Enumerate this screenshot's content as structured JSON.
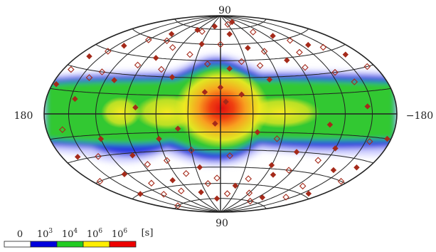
{
  "chart_data": {
    "type": "sky-map (hammer-aitoff projection)",
    "axis_labels": {
      "top": "90",
      "bottom": "90",
      "left": "180",
      "right": "−180"
    },
    "colorbar": {
      "ticks": [
        {
          "base": "0",
          "exp": ""
        },
        {
          "base": "10",
          "exp": "3"
        },
        {
          "base": "10",
          "exp": "4"
        },
        {
          "base": "10",
          "exp": "6"
        },
        {
          "base": "10",
          "exp": "6"
        }
      ],
      "unit": "[s]",
      "colors": [
        "#ffffff",
        "#0000dd",
        "#22cc22",
        "#ffee00",
        "#ee0000"
      ]
    },
    "colors": {
      "grid": "#222222",
      "marker": "#a52a1a",
      "density_scale": [
        "#c8c8ff",
        "#2a3ae0",
        "#30c830",
        "#f4ea20",
        "#f07010",
        "#e01010"
      ]
    },
    "marker_styles": [
      "filled-diamond",
      "open-diamond"
    ],
    "filled_markers": [
      [
        -60,
        82
      ],
      [
        20,
        78
      ],
      [
        -20,
        70
      ],
      [
        60,
        73
      ],
      [
        -100,
        64
      ],
      [
        100,
        66
      ],
      [
        -130,
        52
      ],
      [
        140,
        50
      ],
      [
        -40,
        56
      ],
      [
        30,
        60
      ],
      [
        -160,
        40
      ],
      [
        165,
        38
      ],
      [
        80,
        45
      ],
      [
        -80,
        43
      ],
      [
        -10,
        38
      ],
      [
        50,
        30
      ],
      [
        -50,
        28
      ],
      [
        0,
        22
      ],
      [
        15,
        18
      ],
      [
        -20,
        16
      ],
      [
        5,
        -8
      ],
      [
        -5,
        10
      ],
      [
        40,
        -12
      ],
      [
        -35,
        -15
      ],
      [
        60,
        -20
      ],
      [
        120,
        -18
      ],
      [
        -120,
        -25
      ],
      [
        -80,
        -30
      ],
      [
        95,
        -32
      ],
      [
        160,
        -28
      ],
      [
        -165,
        -35
      ],
      [
        -140,
        -40
      ],
      [
        125,
        -45
      ],
      [
        -70,
        -50
      ],
      [
        70,
        -55
      ],
      [
        -25,
        -62
      ],
      [
        40,
        -68
      ],
      [
        -100,
        -70
      ],
      [
        150,
        -60
      ],
      [
        -160,
        -58
      ],
      [
        10,
        -75
      ],
      [
        175,
        18
      ],
      [
        -175,
        -15
      ],
      [
        145,
        10
      ],
      [
        -145,
        5
      ],
      [
        110,
        25
      ],
      [
        -105,
        -8
      ],
      [
        80,
        5
      ],
      [
        -60,
        -42
      ],
      [
        25,
        -45
      ]
    ],
    "open_markers": [
      [
        -30,
        80
      ],
      [
        45,
        72
      ],
      [
        -75,
        70
      ],
      [
        90,
        60
      ],
      [
        -115,
        58
      ],
      [
        120,
        58
      ],
      [
        -145,
        48
      ],
      [
        150,
        44
      ],
      [
        -60,
        52
      ],
      [
        40,
        50
      ],
      [
        -170,
        30
      ],
      [
        170,
        28
      ],
      [
        95,
        38
      ],
      [
        -95,
        36
      ],
      [
        -25,
        44
      ],
      [
        15,
        42
      ],
      [
        65,
        36
      ],
      [
        -45,
        40
      ],
      [
        130,
        30
      ],
      [
        -125,
        30
      ],
      [
        160,
        -10
      ],
      [
        -155,
        -18
      ],
      [
        135,
        -30
      ],
      [
        -110,
        -35
      ],
      [
        85,
        -40
      ],
      [
        -85,
        -45
      ],
      [
        45,
        -50
      ],
      [
        -40,
        -55
      ],
      [
        105,
        -55
      ],
      [
        -130,
        -55
      ],
      [
        5,
        -55
      ],
      [
        -10,
        -35
      ],
      [
        30,
        -30
      ],
      [
        -55,
        -20
      ],
      [
        60,
        -38
      ],
      [
        170,
        -45
      ],
      [
        -170,
        -45
      ],
      [
        75,
        -65
      ],
      [
        -60,
        -68
      ],
      [
        20,
        -60
      ],
      [
        -15,
        -70
      ],
      [
        115,
        -65
      ],
      [
        -140,
        -65
      ],
      [
        150,
        -75
      ],
      [
        -90,
        -75
      ],
      [
        0,
        60
      ],
      [
        70,
        55
      ],
      [
        -105,
        48
      ],
      [
        140,
        25
      ],
      [
        -140,
        22
      ]
    ]
  }
}
